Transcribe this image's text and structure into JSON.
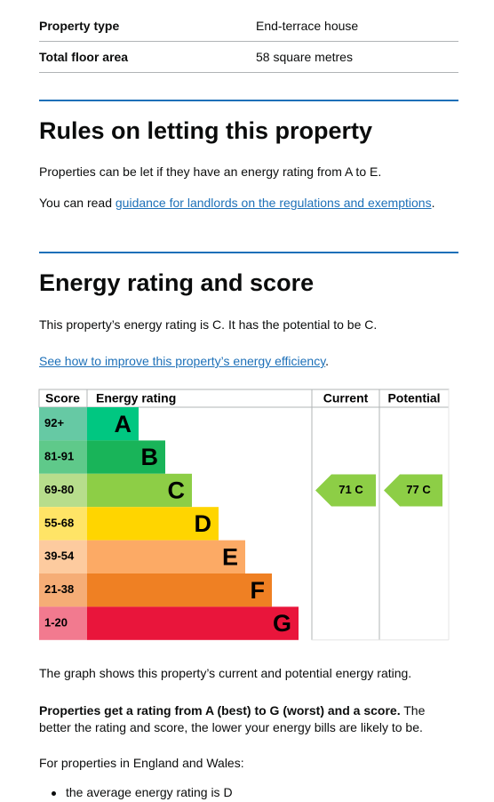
{
  "summary": {
    "rows": [
      [
        "Property type",
        "End-terrace house"
      ],
      [
        "Total floor area",
        "58 square metres"
      ]
    ]
  },
  "rules": {
    "heading": "Rules on letting this property",
    "paragraph": "Properties can be let if they have an energy rating from A to E.",
    "guidance_prefix": "You can read ",
    "guidance_link": "guidance for landlords on the regulations and exemptions",
    "guidance_suffix": "."
  },
  "energy": {
    "heading": "Energy rating and score",
    "intro": "This property’s energy rating is C. It has the potential to be C.",
    "improve_link": "See how to improve this property’s energy efficiency",
    "improve_suffix": ".",
    "chart": {
      "headers": [
        "Score",
        "Energy rating",
        "Current",
        "Potential"
      ],
      "bands": [
        {
          "score": "92+",
          "letter": "A"
        },
        {
          "score": "81-91",
          "letter": "B"
        },
        {
          "score": "69-80",
          "letter": "C"
        },
        {
          "score": "55-68",
          "letter": "D"
        },
        {
          "score": "39-54",
          "letter": "E"
        },
        {
          "score": "21-38",
          "letter": "F"
        },
        {
          "score": "1-20",
          "letter": "G"
        }
      ],
      "current": "71 C",
      "potential": "77 C"
    },
    "graph_note": "The graph shows this property’s current and potential energy rating.",
    "bold": "Properties get a rating from A (best) to G (worst) and a score.",
    "rest": " The better the rating and score, the lower your energy bills are likely to be.",
    "england_intro": "For properties in England and Wales:",
    "bullets": [
      "the average energy rating is D"
    ]
  }
}
